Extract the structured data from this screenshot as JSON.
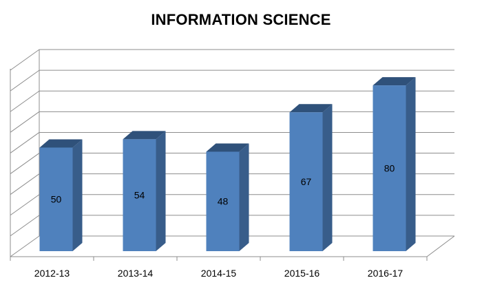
{
  "chart_data": {
    "type": "bar",
    "title": "INFORMATION SCIENCE",
    "xlabel": "",
    "ylabel": "",
    "categories": [
      "2012-13",
      "2013-14",
      "2014-15",
      "2015-16",
      "2016-17"
    ],
    "values": [
      50,
      54,
      48,
      67,
      80
    ],
    "ylim": [
      0,
      90
    ],
    "grid": true,
    "legend": "none",
    "style": "3d-column",
    "colors": {
      "bar_front": "#4f81bd",
      "bar_side": "#385d8a",
      "bar_top": "#2f517a",
      "grid": "#8c8c8c"
    }
  }
}
